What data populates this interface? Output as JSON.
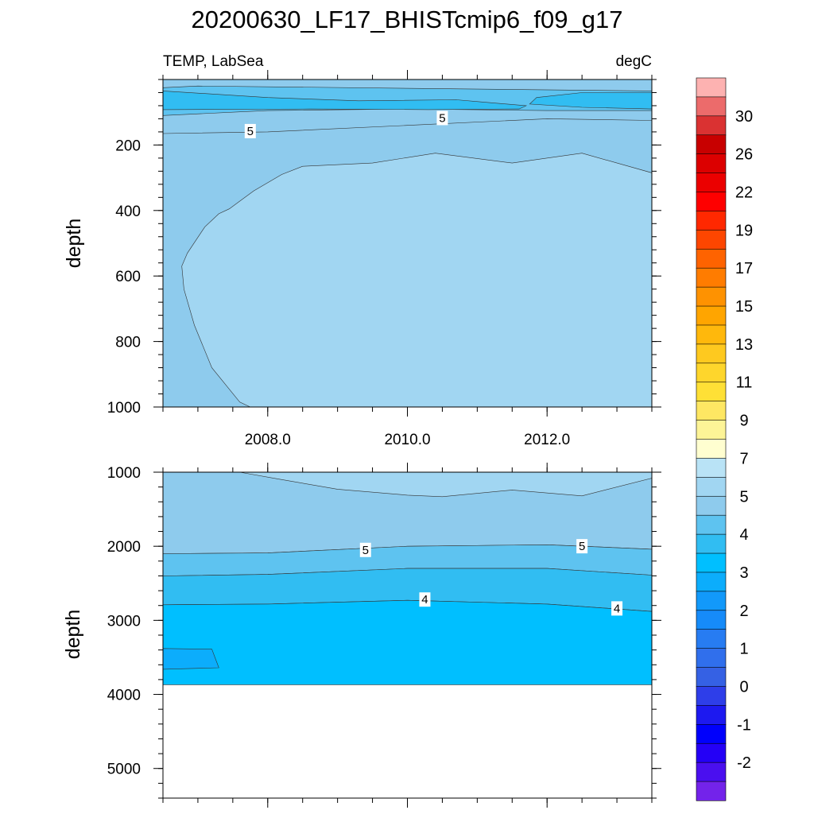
{
  "chart_data": {
    "type": "contour",
    "title": "20200630_LF17_BHISTcmip6_f09_g17",
    "variable_label": "TEMP, LabSea",
    "units_label": "degC",
    "x": {
      "range": [
        2006.5,
        2013.5
      ],
      "tick_labels": [
        "2008.0",
        "2010.0",
        "2012.0"
      ],
      "tick_values": [
        2008.0,
        2010.0,
        2012.0
      ]
    },
    "upper_panel": {
      "ylabel": "depth",
      "ylim": [
        0,
        1000
      ],
      "tick_labels": [
        "200",
        "400",
        "600",
        "800",
        "1000"
      ],
      "tick_values": [
        200,
        400,
        600,
        800,
        1000
      ],
      "contour_labels": [
        {
          "text": "5",
          "x": 2007.75,
          "depth": 160
        },
        {
          "text": "5",
          "x": 2010.5,
          "depth": 120
        }
      ],
      "bands": [
        {
          "name": "band-5.5-6",
          "color": "#8ecbed",
          "lower_bound": [
            [
              2006.5,
              165
            ],
            [
              2008.0,
              160
            ],
            [
              2010.0,
              140
            ],
            [
              2012.0,
              120
            ],
            [
              2013.5,
              125
            ],
            [
              2013.5,
              1000
            ],
            [
              2006.5,
              1000
            ]
          ]
        },
        {
          "name": "band-6-6.5",
          "color": "#a1d6f2",
          "lower_bound": [
            [
              2007.75,
              1000
            ],
            [
              2007.6,
              985
            ],
            [
              2007.2,
              880
            ],
            [
              2006.95,
              750
            ],
            [
              2006.8,
              640
            ],
            [
              2006.77,
              570
            ],
            [
              2006.85,
              530
            ],
            [
              2007.1,
              450
            ],
            [
              2007.3,
              410
            ],
            [
              2007.45,
              395
            ],
            [
              2007.8,
              340
            ],
            [
              2008.2,
              290
            ],
            [
              2008.5,
              265
            ],
            [
              2009.5,
              255
            ],
            [
              2010.4,
              225
            ],
            [
              2011.5,
              255
            ],
            [
              2012.5,
              225
            ],
            [
              2013.5,
              285
            ],
            [
              2013.5,
              1000
            ]
          ]
        },
        {
          "name": "band-5-5.5",
          "color": "#5ec3f0",
          "lower_bound": [
            [
              2006.5,
              25
            ],
            [
              2007.0,
              20
            ],
            [
              2013.5,
              35
            ],
            [
              2013.5,
              95
            ],
            [
              2012.0,
              95
            ],
            [
              2010.0,
              90
            ],
            [
              2008.0,
              95
            ],
            [
              2006.5,
              110
            ]
          ]
        },
        {
          "name": "band-4.5-5",
          "color": "#31bdf2",
          "lower_bound": [
            [
              2006.5,
              35
            ],
            [
              2008.0,
              55
            ],
            [
              2009.3,
              65
            ],
            [
              2010.7,
              62
            ],
            [
              2011.7,
              80
            ],
            [
              2011.6,
              90
            ],
            [
              2010.3,
              92
            ],
            [
              2008.6,
              90
            ],
            [
              2006.5,
              92
            ]
          ]
        },
        {
          "name": "band-4.5-5-right",
          "color": "#31bdf2",
          "lower_bound": [
            [
              2013.5,
              40
            ],
            [
              2012.5,
              40
            ],
            [
              2011.85,
              55
            ],
            [
              2011.75,
              75
            ],
            [
              2012.5,
              85
            ],
            [
              2013.5,
              90
            ]
          ]
        }
      ]
    },
    "lower_panel": {
      "ylabel": "depth",
      "ylim": [
        1000,
        5400
      ],
      "tick_labels": [
        "1000",
        "2000",
        "3000",
        "4000",
        "5000"
      ],
      "tick_values": [
        1000,
        2000,
        3000,
        4000,
        5000
      ],
      "contour_labels": [
        {
          "text": "5",
          "x": 2009.4,
          "depth": 2060
        },
        {
          "text": "5",
          "x": 2012.5,
          "depth": 2010
        },
        {
          "text": "4",
          "x": 2010.25,
          "depth": 2730
        },
        {
          "text": "4",
          "x": 2013.0,
          "depth": 2850
        }
      ],
      "data_bottom_depth": 3870,
      "bands": [
        {
          "name": "band-5.5-6",
          "color": "#8ecbed",
          "lower_bound": [
            [
              2006.5,
              1000
            ],
            [
              2013.5,
              1000
            ],
            [
              2013.5,
              2040
            ],
            [
              2012.0,
              1980
            ],
            [
              2010.0,
              2000
            ],
            [
              2008.0,
              2090
            ],
            [
              2006.5,
              2100
            ]
          ]
        },
        {
          "name": "band-6-6.5",
          "color": "#a1d6f2",
          "lower_bound": [
            [
              2007.6,
              1000
            ],
            [
              2008.2,
              1100
            ],
            [
              2009.0,
              1230
            ],
            [
              2010.0,
              1310
            ],
            [
              2010.5,
              1330
            ],
            [
              2011.5,
              1240
            ],
            [
              2012.5,
              1320
            ],
            [
              2013.5,
              1080
            ],
            [
              2013.5,
              1000
            ]
          ]
        },
        {
          "name": "band-5-5.5",
          "color": "#5ec3f0",
          "lower_bound": [
            [
              2006.5,
              2100
            ],
            [
              2008.0,
              2090
            ],
            [
              2010.0,
              2000
            ],
            [
              2012.0,
              1980
            ],
            [
              2013.5,
              2040
            ],
            [
              2013.5,
              2390
            ],
            [
              2012.0,
              2300
            ],
            [
              2010.0,
              2300
            ],
            [
              2008.0,
              2380
            ],
            [
              2006.5,
              2400
            ]
          ]
        },
        {
          "name": "band-4.5-5",
          "color": "#31bdf2",
          "lower_bound": [
            [
              2006.5,
              2400
            ],
            [
              2008.0,
              2380
            ],
            [
              2010.0,
              2300
            ],
            [
              2012.0,
              2300
            ],
            [
              2013.5,
              2390
            ],
            [
              2013.5,
              2880
            ],
            [
              2012.0,
              2780
            ],
            [
              2010.0,
              2730
            ],
            [
              2008.0,
              2780
            ],
            [
              2006.5,
              2790
            ]
          ]
        },
        {
          "name": "band-4-4.5",
          "color": "#00bfff",
          "lower_bound": [
            [
              2006.5,
              2790
            ],
            [
              2008.0,
              2780
            ],
            [
              2010.0,
              2730
            ],
            [
              2012.0,
              2780
            ],
            [
              2013.5,
              2880
            ],
            [
              2013.5,
              3870
            ],
            [
              2006.5,
              3870
            ]
          ]
        },
        {
          "name": "band-3.5-4",
          "color": "#0cadfc",
          "lower_bound": [
            [
              2006.5,
              3380
            ],
            [
              2007.2,
              3390
            ],
            [
              2007.3,
              3640
            ],
            [
              2006.5,
              3660
            ]
          ]
        }
      ]
    },
    "colorbar": {
      "labels": [
        "30",
        "26",
        "22",
        "19",
        "17",
        "15",
        "13",
        "11",
        "9",
        "7",
        "5",
        "4",
        "3",
        "2",
        "1",
        "0",
        "-1",
        "-2"
      ],
      "colors": [
        "#fdb2b1",
        "#ec6b6b",
        "#da3232",
        "#c80000",
        "#dc0000",
        "#eb0000",
        "#fe0000",
        "#ff2800",
        "#fd4600",
        "#fe6300",
        "#ff7c00",
        "#fe9201",
        "#ffa500",
        "#ffb80c",
        "#fec91f",
        "#fed62c",
        "#fee036",
        "#fee763",
        "#fdf497",
        "#fffed0",
        "#b9e3f6",
        "#a1d6f2",
        "#8ecbed",
        "#5ec3f0",
        "#31bdf2",
        "#00bfff",
        "#0cadfc",
        "#1299fa",
        "#168bf9",
        "#277cf2",
        "#306fec",
        "#3561e4",
        "#2e3ee9",
        "#1d19f0",
        "#0000fc",
        "#2400f6",
        "#4a0fef",
        "#7323ea"
      ]
    }
  }
}
